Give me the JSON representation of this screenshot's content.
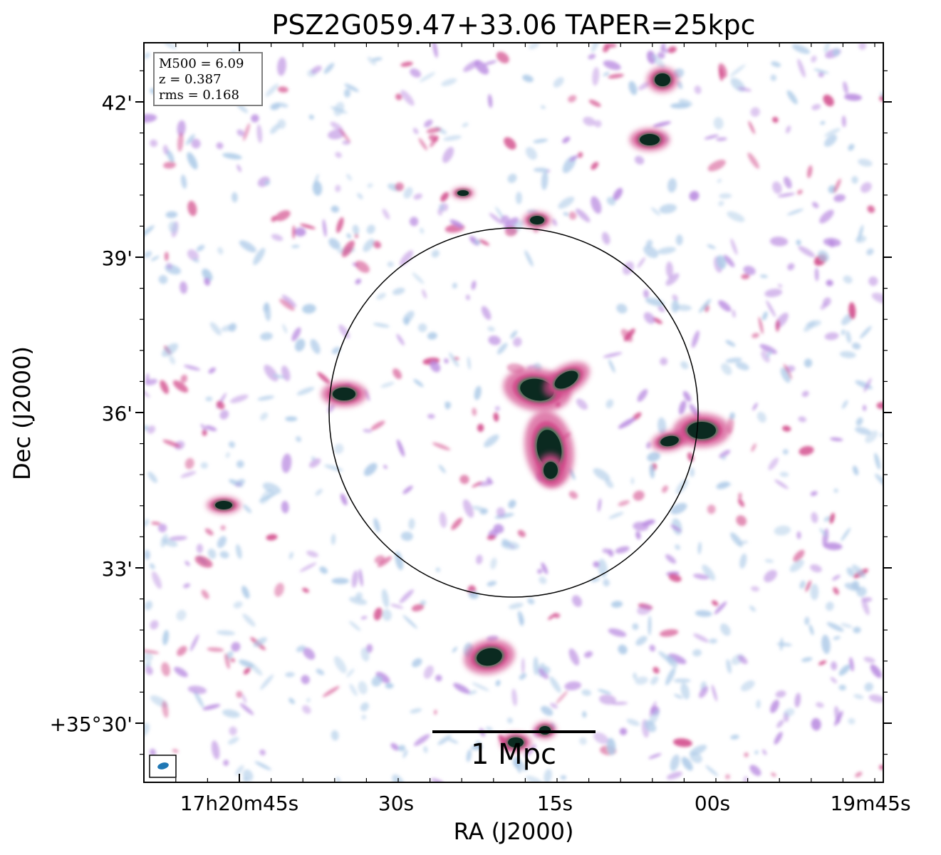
{
  "title": "PSZ2G059.47+33.06 TAPER=25kpc",
  "info_box": {
    "line1": "M500 = 6.09",
    "line2": "z = 0.387",
    "line3": "rms = 0.168"
  },
  "axes": {
    "xlabel": "RA (J2000)",
    "ylabel": "Dec (J2000)",
    "x_ticks": [
      "17h20m45s",
      "30s",
      "15s",
      "00s",
      "19m45s"
    ],
    "y_ticks": [
      "42'",
      "39'",
      "36'",
      "33'",
      "+35°30'"
    ]
  },
  "scalebar": {
    "label": "1 Mpc"
  },
  "colors": {
    "frame": "#000000",
    "faint_emission": "#aecbe8",
    "mid_emission": "#b98be0",
    "bright_emission": "#d24a8a",
    "peak_emission": "#0b2a20",
    "beam": "#1f77b4"
  },
  "icons": {
    "beam": "beam-ellipse-icon",
    "circle": "r500-circle-icon"
  }
}
